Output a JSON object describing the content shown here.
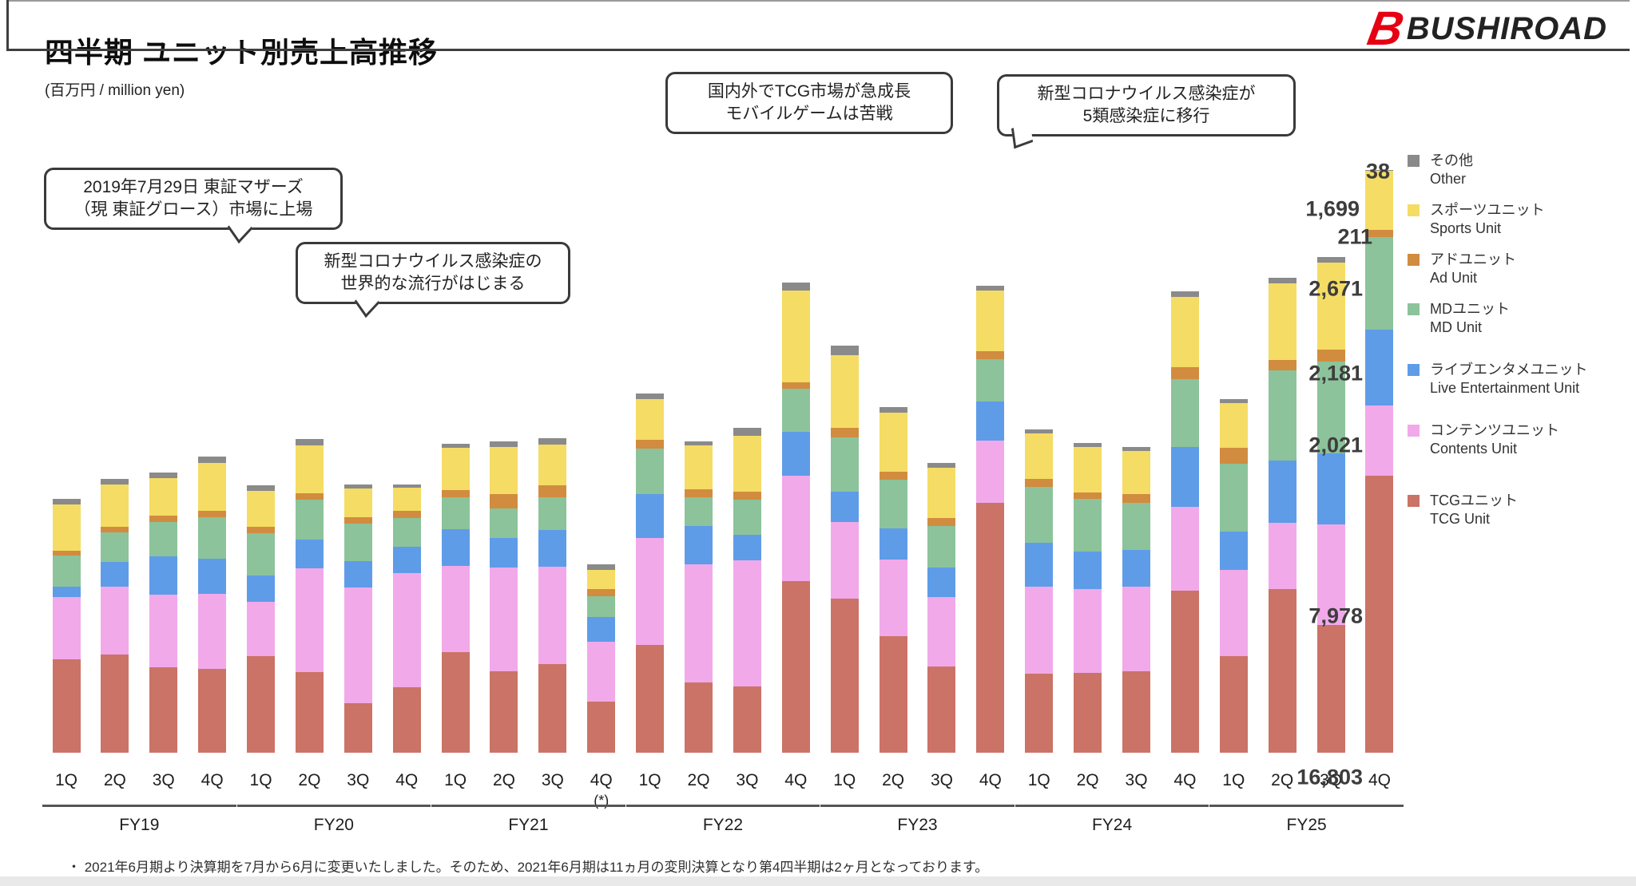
{
  "header": {
    "title": "四半期 ユニット別売上高推移",
    "unit_note": "(百万円 / million yen)",
    "brand": "BUSHIROAD",
    "brand_mark": "B",
    "brand_color": "#e60012"
  },
  "callouts": [
    {
      "id": "ipo",
      "lines": [
        "2019年7月29日 東証マザーズ",
        "（現 東証グロース）市場に上場"
      ]
    },
    {
      "id": "covid-start",
      "lines": [
        "新型コロナウイルス感染症の",
        "世界的な流行がはじまる"
      ]
    },
    {
      "id": "tcg-growth",
      "lines": [
        "国内外でTCG市場が急成長",
        "モバイルゲームは苦戦"
      ]
    },
    {
      "id": "covid-class5",
      "lines": [
        "新型コロナウイルス感染症が",
        "5類感染症に移行"
      ]
    }
  ],
  "legend": [
    {
      "jp": "その他",
      "en": "Other",
      "color": "#8a8a8a"
    },
    {
      "jp": "スポーツユニット",
      "en": "Sports Unit",
      "color": "#f5dc64"
    },
    {
      "jp": "アドユニット",
      "en": "Ad Unit",
      "color": "#d18c3f"
    },
    {
      "jp": "MDユニット",
      "en": "MD Unit",
      "color": "#8cc39b"
    },
    {
      "jp": "ライブエンタメユニット",
      "en": "Live Entertainment Unit",
      "color": "#5e9ce8"
    },
    {
      "jp": "コンテンツユニット",
      "en": "Contents Unit",
      "color": "#f1a9ea"
    },
    {
      "jp": "TCGユニット",
      "en": "TCG Unit",
      "color": "#cb7366"
    }
  ],
  "value_labels": {
    "other": "38",
    "sports": "1,699",
    "ad": "211",
    "md": "2,671",
    "live": "2,181",
    "contents": "2,021",
    "tcg": "7,978",
    "total": "16,803"
  },
  "x_axis": {
    "quarters": [
      "1Q",
      "2Q",
      "3Q",
      "4Q"
    ],
    "fiscal_years": [
      "FY19",
      "FY20",
      "FY21",
      "FY22",
      "FY23",
      "FY24",
      "FY25"
    ],
    "special_note": "(*)",
    "special_note_bar_index": 11
  },
  "footnote": "・ 2021年6月期より決算期を7月から6月に変更いたしました。そのため、2021年6月期は11ヵ月の変則決算となり第4四半期は2ヶ月となっております。",
  "chart_data": {
    "type": "bar",
    "subtype": "stacked",
    "title": "四半期 ユニット別売上高推移",
    "xlabel": "",
    "ylabel": "百万円 / million yen",
    "ylim": [
      0,
      17000
    ],
    "grid": false,
    "legend_position": "right",
    "note": "Only the FY25 4Q bar carries data labels in the source; all other values are estimated from bar heights.",
    "categories": [
      "FY19 1Q",
      "FY19 2Q",
      "FY19 3Q",
      "FY19 4Q",
      "FY20 1Q",
      "FY20 2Q",
      "FY20 3Q",
      "FY20 4Q",
      "FY21 1Q",
      "FY21 2Q",
      "FY21 3Q",
      "FY21 4Q",
      "FY22 1Q",
      "FY22 2Q",
      "FY22 3Q",
      "FY22 4Q",
      "FY23 1Q",
      "FY23 2Q",
      "FY23 3Q",
      "FY23 4Q",
      "FY24 1Q",
      "FY24 2Q",
      "FY24 3Q",
      "FY24 4Q",
      "FY25 1Q",
      "FY25 2Q",
      "FY25 3Q",
      "FY25 4Q"
    ],
    "series": [
      {
        "name": "TCGユニット TCG Unit",
        "color": "#cb7366",
        "values": [
          2700,
          2830,
          2460,
          2420,
          2780,
          2320,
          1430,
          1890,
          2900,
          2350,
          2560,
          1470,
          3110,
          2030,
          1910,
          4950,
          4440,
          3370,
          2480,
          7195,
          2285,
          2310,
          2345,
          4670,
          2775,
          4725,
          3670,
          7978
        ]
      },
      {
        "name": "コンテンツユニット Contents Unit",
        "color": "#f1a9ea",
        "values": [
          1780,
          1960,
          2090,
          2160,
          1560,
          2990,
          3330,
          3290,
          2490,
          2990,
          2790,
          1730,
          3080,
          3400,
          3640,
          3030,
          2210,
          2200,
          2000,
          1795,
          2500,
          2400,
          2450,
          2415,
          2500,
          1900,
          2900,
          2021
        ]
      },
      {
        "name": "ライブエンタメユニット Live Entertainment Unit",
        "color": "#5e9ce8",
        "values": [
          300,
          710,
          1100,
          1010,
          760,
          830,
          760,
          760,
          1060,
          850,
          1060,
          710,
          1260,
          1100,
          720,
          1270,
          875,
          900,
          850,
          1125,
          1265,
          1100,
          1050,
          1725,
          1100,
          1800,
          2050,
          2181
        ]
      },
      {
        "name": "MDユニット MD Unit",
        "color": "#8cc39b",
        "values": [
          900,
          850,
          990,
          1190,
          1220,
          1150,
          1080,
          830,
          920,
          850,
          960,
          600,
          1310,
          830,
          1030,
          1240,
          1565,
          1400,
          1200,
          1220,
          1610,
          1500,
          1350,
          1955,
          1950,
          2600,
          2650,
          2671
        ]
      },
      {
        "name": "アドユニット Ad Unit",
        "color": "#d18c3f",
        "values": [
          140,
          160,
          190,
          190,
          190,
          190,
          190,
          190,
          190,
          410,
          340,
          210,
          260,
          230,
          230,
          190,
          275,
          230,
          230,
          230,
          230,
          200,
          250,
          345,
          450,
          300,
          350,
          211
        ]
      },
      {
        "name": "スポーツユニット Sports Unit",
        "color": "#f5dc64",
        "values": [
          1330,
          1220,
          1080,
          1380,
          1040,
          1380,
          830,
          670,
          1220,
          1360,
          1180,
          550,
          1170,
          1260,
          1610,
          2640,
          2090,
          1700,
          1450,
          1750,
          1310,
          1300,
          1250,
          2025,
          1300,
          2200,
          2500,
          1699
        ]
      },
      {
        "name": "その他 Other",
        "color": "#8a8a8a",
        "values": [
          160,
          160,
          160,
          180,
          160,
          180,
          110,
          110,
          110,
          160,
          180,
          160,
          160,
          120,
          230,
          230,
          275,
          160,
          140,
          140,
          115,
          115,
          115,
          160,
          115,
          160,
          160,
          38
        ]
      }
    ]
  }
}
